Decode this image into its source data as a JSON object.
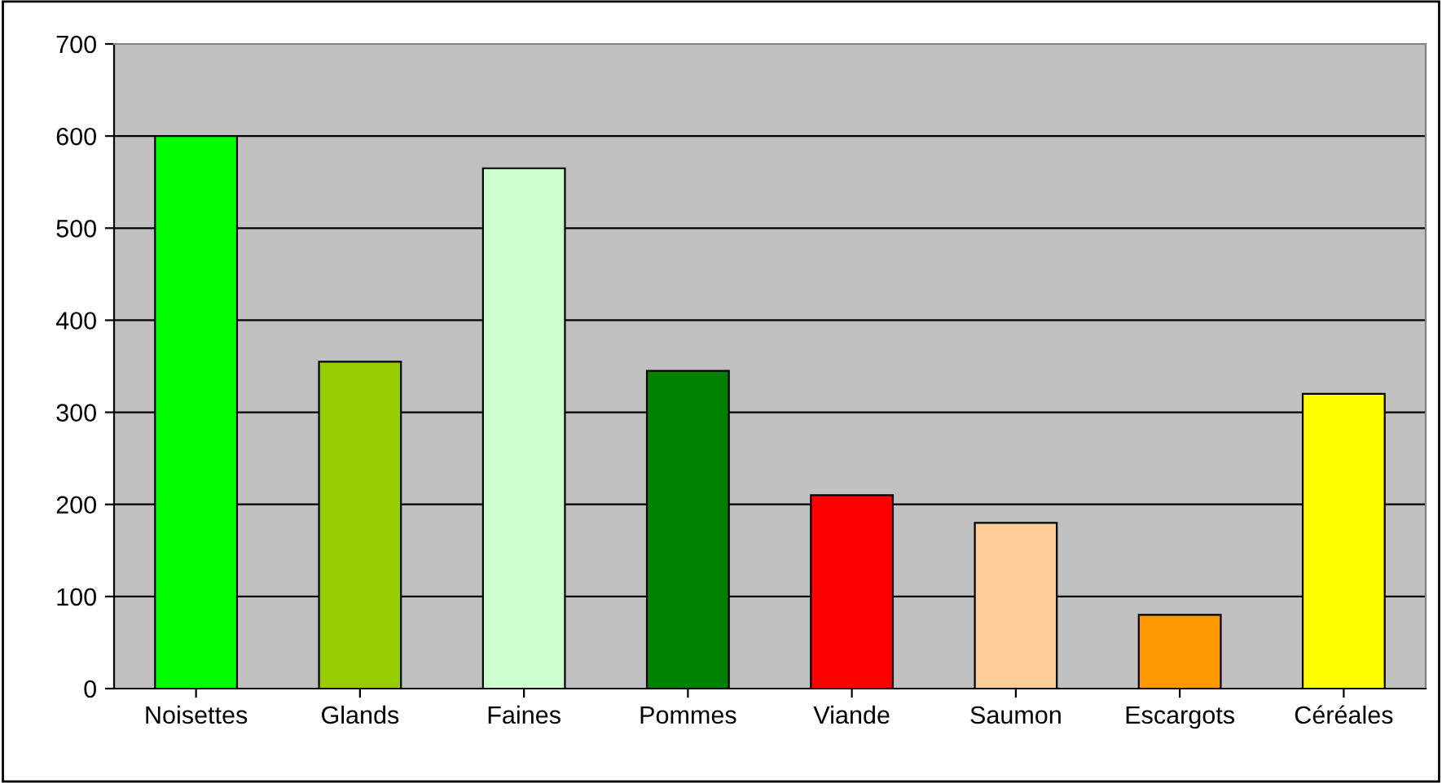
{
  "chart_data": {
    "type": "bar",
    "categories": [
      "Noisettes",
      "Glands",
      "Faines",
      "Pommes",
      "Viande",
      "Saumon",
      "Escargots",
      "Céréales"
    ],
    "values": [
      600,
      355,
      565,
      345,
      210,
      180,
      80,
      320
    ],
    "colors": [
      "#00ff00",
      "#99cc00",
      "#ccffcc",
      "#008000",
      "#ff0000",
      "#ffcc99",
      "#ff9900",
      "#ffff00"
    ],
    "ylim": [
      0,
      700
    ],
    "yticks": [
      0,
      100,
      200,
      300,
      400,
      500,
      600,
      700
    ],
    "grid": "y"
  }
}
